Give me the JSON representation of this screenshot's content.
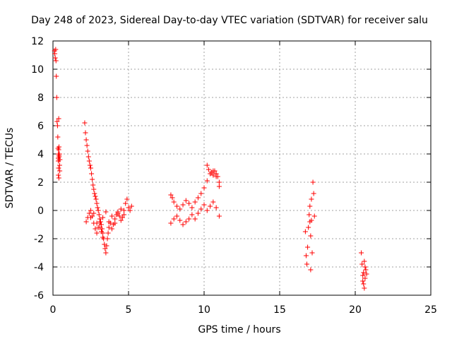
{
  "chart_data": {
    "type": "scatter",
    "title": "Day 248 of 2023, Sidereal Day-to-day VTEC variation (SDTVAR) for receiver salu",
    "xlabel": "GPS time / hours",
    "ylabel": "SDTVAR / TECUs",
    "xlim": [
      0,
      25
    ],
    "ylim": [
      -6,
      12
    ],
    "xticks": [
      "0",
      "5",
      "10",
      "15",
      "20",
      "25"
    ],
    "yticks": [
      "-6",
      "-4",
      "-2",
      "0",
      "2",
      "4",
      "6",
      "8",
      "10",
      "12"
    ],
    "grid": true,
    "marker": "+",
    "color": "#ff0000",
    "series": [
      {
        "name": "SDTVAR",
        "x": [
          0.1,
          0.12,
          0.15,
          0.18,
          0.2,
          0.22,
          0.25,
          0.27,
          0.3,
          0.32,
          0.33,
          0.35,
          0.35,
          0.35,
          0.36,
          0.37,
          0.38,
          0.38,
          0.39,
          0.4,
          0.4,
          0.41,
          0.42,
          0.43,
          0.44,
          0.45,
          0.46,
          2.1,
          2.15,
          2.2,
          2.25,
          2.3,
          2.35,
          2.4,
          2.45,
          2.5,
          2.55,
          2.6,
          2.65,
          2.7,
          2.75,
          2.8,
          2.85,
          2.9,
          2.95,
          3.0,
          3.05,
          3.1,
          3.15,
          3.2,
          3.25,
          3.3,
          3.35,
          2.2,
          2.3,
          2.4,
          2.5,
          2.6,
          2.7,
          2.8,
          2.9,
          3.0,
          3.1,
          3.2,
          3.3,
          3.4,
          3.45,
          3.5,
          3.55,
          3.6,
          3.65,
          3.7,
          3.8,
          3.9,
          4.0,
          4.1,
          4.2,
          4.3,
          4.4,
          4.5,
          4.6,
          4.7,
          4.8,
          4.9,
          5.0,
          5.1,
          5.2,
          2.5,
          2.7,
          2.9,
          3.1,
          3.3,
          3.5,
          3.7,
          3.9,
          4.1,
          4.3,
          4.5,
          4.7,
          7.8,
          7.9,
          8.0,
          8.2,
          8.4,
          8.6,
          8.8,
          9.0,
          9.2,
          9.4,
          9.6,
          9.8,
          10.0,
          10.2,
          10.4,
          10.6,
          10.8,
          11.0,
          7.8,
          8.0,
          8.2,
          8.4,
          8.6,
          8.8,
          9.0,
          9.2,
          9.4,
          9.6,
          9.8,
          10.0,
          10.2,
          10.4,
          10.6,
          10.8,
          11.0,
          10.2,
          10.3,
          10.4,
          10.5,
          10.6,
          10.7,
          10.8,
          10.9,
          11.0,
          16.7,
          16.75,
          16.8,
          16.85,
          16.9,
          16.95,
          17.0,
          17.05,
          17.1,
          17.15,
          17.2,
          17.25,
          17.3,
          17.0,
          17.05,
          17.1,
          20.4,
          20.45,
          20.5,
          20.55,
          20.6,
          20.65,
          20.7,
          20.75,
          20.5,
          20.55,
          20.6,
          20.65
        ],
        "y": [
          11.3,
          11.1,
          10.8,
          11.4,
          10.6,
          9.5,
          8.0,
          6.3,
          6.0,
          5.2,
          4.4,
          4.0,
          3.7,
          3.5,
          2.5,
          3.0,
          4.3,
          6.5,
          2.3,
          3.9,
          4.5,
          3.8,
          3.6,
          4.0,
          3.2,
          2.8,
          3.6,
          6.2,
          5.5,
          5.0,
          4.6,
          4.2,
          3.8,
          3.5,
          3.2,
          3.0,
          2.6,
          2.2,
          1.8,
          1.5,
          1.2,
          1.0,
          0.8,
          0.5,
          0.2,
          0.0,
          -0.3,
          -0.6,
          -0.8,
          -1.0,
          -1.3,
          -1.6,
          -2.0,
          -0.8,
          -0.5,
          -0.2,
          0.0,
          -0.4,
          -0.9,
          -1.3,
          -1.6,
          -1.2,
          -0.8,
          -1.5,
          -1.9,
          -2.4,
          -2.7,
          -3.0,
          -2.5,
          -2.0,
          -1.6,
          -1.2,
          -0.9,
          -1.3,
          -1.0,
          -0.6,
          -0.3,
          -0.1,
          -0.4,
          -0.7,
          -0.5,
          0.0,
          0.5,
          0.8,
          0.2,
          0.0,
          0.3,
          -0.5,
          -0.2,
          -0.9,
          -1.2,
          -0.5,
          -0.1,
          -0.8,
          -0.4,
          -0.9,
          -0.2,
          0.1,
          -0.3,
          1.1,
          0.9,
          0.6,
          0.3,
          0.1,
          0.4,
          0.7,
          0.5,
          0.2,
          0.6,
          0.9,
          1.2,
          1.6,
          2.1,
          2.6,
          2.8,
          2.4,
          2.0,
          -0.9,
          -0.6,
          -0.4,
          -0.7,
          -1.0,
          -0.8,
          -0.6,
          -0.3,
          -0.6,
          -0.2,
          0.1,
          0.4,
          0.0,
          0.3,
          0.6,
          0.2,
          -0.4,
          3.2,
          2.9,
          2.6,
          2.7,
          2.5,
          2.8,
          2.6,
          2.4,
          1.7,
          -1.5,
          -3.2,
          -3.8,
          -2.6,
          -1.2,
          -0.3,
          -0.8,
          -4.2,
          -0.7,
          -3.0,
          2.0,
          1.2,
          -0.4,
          0.3,
          -1.8,
          0.8,
          -3.0,
          -3.8,
          -4.6,
          -5.2,
          -5.5,
          -4.8,
          -4.2,
          -4.5,
          -5.0,
          -4.4,
          -3.6,
          -4.0
        ]
      }
    ]
  }
}
